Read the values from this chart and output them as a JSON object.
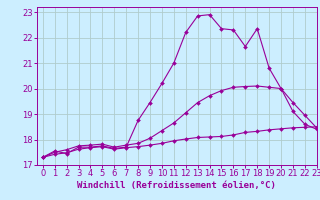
{
  "xlabel": "Windchill (Refroidissement éolien,°C)",
  "bg_color": "#cceeff",
  "line_color": "#990099",
  "grid_color": "#aaddcc",
  "xlim": [
    -0.5,
    23
  ],
  "ylim": [
    17,
    23.2
  ],
  "xticks": [
    0,
    1,
    2,
    3,
    4,
    5,
    6,
    7,
    8,
    9,
    10,
    11,
    12,
    13,
    14,
    15,
    16,
    17,
    18,
    19,
    20,
    21,
    22,
    23
  ],
  "yticks": [
    17,
    18,
    19,
    20,
    21,
    22,
    23
  ],
  "line1_x": [
    0,
    1,
    2,
    3,
    4,
    5,
    6,
    7,
    8,
    9,
    10,
    11,
    12,
    13,
    14,
    15,
    16,
    17,
    18,
    19,
    20,
    21,
    22,
    23
  ],
  "line1_y": [
    17.3,
    17.55,
    17.45,
    17.7,
    17.7,
    17.75,
    17.65,
    17.7,
    18.75,
    19.45,
    20.2,
    21.0,
    22.2,
    22.85,
    22.9,
    22.35,
    22.3,
    21.65,
    22.35,
    20.8,
    20.0,
    19.1,
    18.6,
    18.4
  ],
  "line2_x": [
    0,
    1,
    2,
    3,
    4,
    5,
    6,
    7,
    8,
    9,
    10,
    11,
    12,
    13,
    14,
    15,
    16,
    17,
    18,
    19,
    20,
    21,
    22,
    23
  ],
  "line2_y": [
    17.3,
    17.42,
    17.48,
    17.62,
    17.68,
    17.72,
    17.62,
    17.68,
    17.72,
    17.78,
    17.85,
    17.95,
    18.02,
    18.08,
    18.1,
    18.12,
    18.18,
    18.28,
    18.32,
    18.38,
    18.42,
    18.46,
    18.48,
    18.5
  ],
  "line3_x": [
    0,
    1,
    2,
    3,
    4,
    5,
    6,
    7,
    8,
    9,
    10,
    11,
    12,
    13,
    14,
    15,
    16,
    17,
    18,
    19,
    20,
    21,
    22,
    23
  ],
  "line3_y": [
    17.3,
    17.5,
    17.6,
    17.75,
    17.78,
    17.82,
    17.7,
    17.78,
    17.85,
    18.05,
    18.35,
    18.65,
    19.05,
    19.45,
    19.72,
    19.92,
    20.05,
    20.08,
    20.1,
    20.05,
    20.0,
    19.45,
    18.95,
    18.45
  ],
  "markersize": 2.0,
  "linewidth": 0.8,
  "xlabel_fontsize": 6.5,
  "tick_fontsize": 6
}
